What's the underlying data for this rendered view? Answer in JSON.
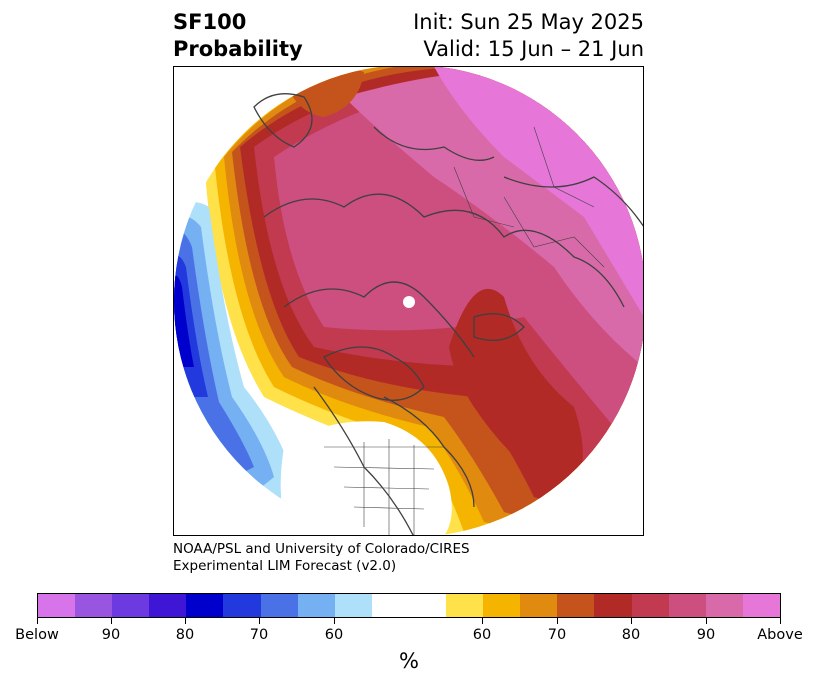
{
  "header": {
    "title_line1": "SF100",
    "title_line2": "Probability",
    "init": "Init: Sun 25 May 2025",
    "valid": "Valid: 15 Jun – 21 Jun"
  },
  "credit": {
    "line1": "NOAA/PSL and University of Colorado/CIRES",
    "line2": "Experimental LIM Forecast (v2.0)"
  },
  "colorbar": {
    "unit": "%",
    "colors": [
      "#d774ea",
      "#9a55e0",
      "#6c3ae0",
      "#3f16d6",
      "#0000cc",
      "#2239de",
      "#4a72e6",
      "#74b0f2",
      "#aee0fa",
      "#ffffff",
      "#ffe14a",
      "#f5b400",
      "#e08a10",
      "#c4541c",
      "#b22a26",
      "#c23a50",
      "#cc4f80",
      "#d96aaa",
      "#e676d8"
    ],
    "labels": [
      "Below",
      "90",
      "80",
      "70",
      "60",
      "60",
      "70",
      "80",
      "90",
      "Above"
    ]
  },
  "map": {
    "features": [
      "north-polar-projection",
      "coastlines",
      "country-borders",
      "us-state-borders",
      "canada-province-borders"
    ],
    "colors": {
      "above_max": "#e676d8",
      "p90": "#d96aaa",
      "p85": "#cc4f80",
      "p80": "#c23a50",
      "p75": "#b22a26",
      "p70": "#c4541c",
      "p65": "#e08a10",
      "p60": "#f5b400",
      "p55": "#ffe14a",
      "b60": "#aee0fa",
      "b65": "#74b0f2",
      "b70": "#4a72e6",
      "b75": "#2239de",
      "b80": "#0000cc",
      "coast": "#404040"
    }
  }
}
